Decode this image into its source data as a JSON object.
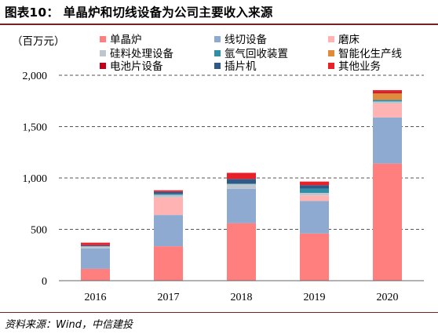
{
  "header": {
    "title": "图表10：  单晶炉和切线设备为公司主要收入来源"
  },
  "footer": {
    "source": "资料来源：Wind，中信建投"
  },
  "chart_data": {
    "type": "bar",
    "stacked": true,
    "unit_label": "（百万元）",
    "categories": [
      "2016",
      "2017",
      "2018",
      "2019",
      "2020"
    ],
    "ylim": [
      0,
      2000
    ],
    "yticks": [
      0,
      500,
      1000,
      1500,
      2000
    ],
    "ytick_labels": [
      "0",
      "500",
      "1,000",
      "1,500",
      "2,000"
    ],
    "grid": true,
    "legend_position": "top",
    "series": [
      {
        "name": "单晶炉",
        "color": "#ff7f7f",
        "values": [
          115,
          335,
          560,
          460,
          1140
        ]
      },
      {
        "name": "线切设备",
        "color": "#8eaad0",
        "values": [
          200,
          305,
          335,
          315,
          450
        ]
      },
      {
        "name": "磨床",
        "color": "#ffb3b3",
        "values": [
          0,
          170,
          0,
          55,
          135
        ]
      },
      {
        "name": "硅料处理设备",
        "color": "#bdc6cf",
        "values": [
          20,
          25,
          45,
          25,
          20
        ]
      },
      {
        "name": "氩气回收装置",
        "color": "#2f8fa6",
        "values": [
          0,
          10,
          5,
          40,
          15
        ]
      },
      {
        "name": "智能化生产线",
        "color": "#e08a3c",
        "values": [
          0,
          0,
          0,
          0,
          65
        ]
      },
      {
        "name": "电池片设备",
        "color": "#c0001a",
        "values": [
          0,
          0,
          0,
          0,
          10
        ]
      },
      {
        "name": "插片机",
        "color": "#2e5a88",
        "values": [
          10,
          20,
          45,
          35,
          0
        ]
      },
      {
        "name": "其他业务",
        "color": "#e8202a",
        "values": [
          25,
          15,
          60,
          35,
          20
        ]
      }
    ]
  }
}
